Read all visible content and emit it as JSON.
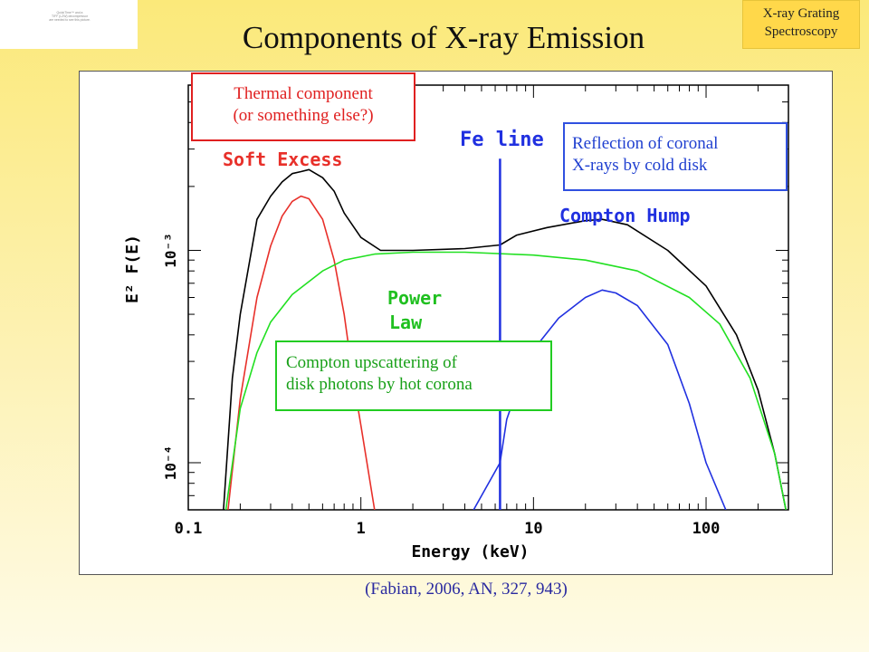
{
  "slide": {
    "title": "Components of X-ray Emission",
    "badge_lines": [
      "X-ray Grating",
      "Spectroscopy"
    ],
    "logo_lines": [
      "QuickTime™ and a",
      "TIFF (LZW) decompressor",
      "are needed to see this picture."
    ],
    "citation": "(Fabian, 2006, AN, 327, 943)"
  },
  "annotations": {
    "thermal": [
      "Thermal component",
      "(or something else?)"
    ],
    "reflection": [
      "Reflection of coronal",
      "X-rays by cold disk"
    ],
    "compton_upscatter": [
      "Compton upscattering of",
      "disk photons by hot corona"
    ]
  },
  "chart_data": {
    "type": "line",
    "title": "",
    "xlabel": "Energy (keV)",
    "ylabel": "E² F(E)",
    "x_scale": "log",
    "y_scale": "log",
    "xlim": [
      0.1,
      300
    ],
    "ylim": [
      6e-05,
      0.006
    ],
    "x_ticks": [
      {
        "value": 0.1,
        "label": "0.1"
      },
      {
        "value": 1,
        "label": "1"
      },
      {
        "value": 10,
        "label": "10"
      },
      {
        "value": 100,
        "label": "100"
      }
    ],
    "y_ticks": [
      {
        "value": 0.0001,
        "label": "10⁻⁴"
      },
      {
        "value": 0.001,
        "label": "10⁻³"
      }
    ],
    "grid": false,
    "in_plot_labels": [
      {
        "text": "Soft Excess",
        "color": "#e8302a",
        "series": "soft_excess"
      },
      {
        "text": "Fe line",
        "color": "#2030e0",
        "series": "fe_line"
      },
      {
        "text": "Compton Hump",
        "color": "#2030e0",
        "series": "reflection"
      },
      {
        "text": "Power",
        "color": "#20c020",
        "series": "power_law"
      },
      {
        "text": "Law",
        "color": "#20c020",
        "series": "power_law"
      }
    ],
    "series": [
      {
        "key": "total",
        "color": "#000000",
        "points": [
          [
            0.16,
            6e-05
          ],
          [
            0.18,
            0.00025
          ],
          [
            0.2,
            0.0005
          ],
          [
            0.25,
            0.0014
          ],
          [
            0.3,
            0.0018
          ],
          [
            0.35,
            0.0021
          ],
          [
            0.4,
            0.0023
          ],
          [
            0.45,
            0.00235
          ],
          [
            0.5,
            0.0024
          ],
          [
            0.6,
            0.0022
          ],
          [
            0.7,
            0.0019
          ],
          [
            0.8,
            0.0015
          ],
          [
            1.0,
            0.00115
          ],
          [
            1.3,
            0.001
          ],
          [
            2,
            0.001
          ],
          [
            4,
            0.00102
          ],
          [
            6.4,
            0.00106
          ],
          [
            8,
            0.00118
          ],
          [
            12,
            0.00128
          ],
          [
            20,
            0.00138
          ],
          [
            25,
            0.0014
          ],
          [
            35,
            0.00132
          ],
          [
            60,
            0.001
          ],
          [
            100,
            0.00068
          ],
          [
            150,
            0.0004
          ],
          [
            200,
            0.00022
          ],
          [
            250,
            0.00011
          ],
          [
            290,
            6e-05
          ]
        ]
      },
      {
        "key": "soft_excess",
        "color": "#e8302a",
        "points": [
          [
            0.17,
            6e-05
          ],
          [
            0.2,
            0.0002
          ],
          [
            0.25,
            0.0006
          ],
          [
            0.3,
            0.00105
          ],
          [
            0.35,
            0.00145
          ],
          [
            0.4,
            0.0017
          ],
          [
            0.45,
            0.0018
          ],
          [
            0.5,
            0.00175
          ],
          [
            0.6,
            0.0014
          ],
          [
            0.7,
            0.0009
          ],
          [
            0.8,
            0.0005
          ],
          [
            0.9,
            0.00025
          ],
          [
            1.0,
            0.00015
          ],
          [
            1.2,
            6e-05
          ]
        ]
      },
      {
        "key": "power_law",
        "color": "#22e022",
        "points": [
          [
            0.165,
            6e-05
          ],
          [
            0.2,
            0.00018
          ],
          [
            0.25,
            0.00033
          ],
          [
            0.3,
            0.00046
          ],
          [
            0.4,
            0.00062
          ],
          [
            0.6,
            0.0008
          ],
          [
            0.8,
            0.0009
          ],
          [
            1.2,
            0.00096
          ],
          [
            2,
            0.00098
          ],
          [
            4,
            0.00098
          ],
          [
            10,
            0.00095
          ],
          [
            20,
            0.0009
          ],
          [
            40,
            0.0008
          ],
          [
            80,
            0.0006
          ],
          [
            120,
            0.00045
          ],
          [
            180,
            0.00025
          ],
          [
            250,
            0.00011
          ],
          [
            290,
            6e-05
          ]
        ]
      },
      {
        "key": "reflection",
        "color": "#2030e0",
        "points": [
          [
            4.5,
            6e-05
          ],
          [
            6.4,
            0.0001
          ],
          [
            7.0,
            0.00016
          ],
          [
            8,
            0.00022
          ],
          [
            10,
            0.00034
          ],
          [
            14,
            0.00048
          ],
          [
            20,
            0.0006
          ],
          [
            25,
            0.00065
          ],
          [
            30,
            0.00063
          ],
          [
            40,
            0.00055
          ],
          [
            60,
            0.00036
          ],
          [
            80,
            0.00019
          ],
          [
            100,
            0.0001
          ],
          [
            130,
            6e-05
          ]
        ]
      },
      {
        "key": "fe_line",
        "color": "#2030e0",
        "points": [
          [
            6.4,
            6e-05
          ],
          [
            6.4,
            0.0027
          ]
        ]
      }
    ]
  }
}
